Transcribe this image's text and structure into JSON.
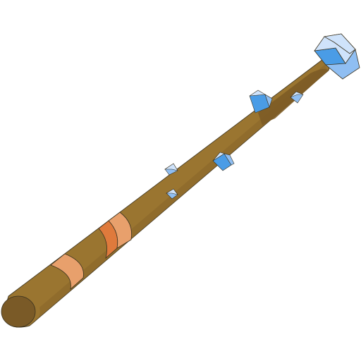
{
  "item": {
    "icon": "crystal-staff-icon",
    "colors": {
      "wood": "#9a7530",
      "wood_dark": "#7d5c26",
      "wood_end": "#7a5a27",
      "band_light": "#e8a06c",
      "band_orange": "#df7a3c",
      "crystal_light": "#cfe3fb",
      "crystal_mid": "#8fbef2",
      "crystal_dark": "#4a9ce6",
      "outline": "#3b3320"
    }
  }
}
